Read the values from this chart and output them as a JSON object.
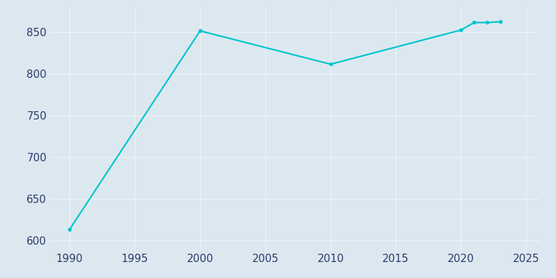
{
  "x": [
    1990,
    2000,
    2010,
    2020,
    2021,
    2022,
    2023
  ],
  "y": [
    613,
    851,
    811,
    852,
    861,
    861,
    862
  ],
  "line_color": "#00c5cd",
  "marker": "o",
  "marker_size": 3.5,
  "bg_color": "#dce8f0",
  "plot_bg_color": "#dce8f0",
  "grid_color": "#eef3f8",
  "xlabel": "",
  "ylabel": "",
  "xlim": [
    1988.5,
    2026
  ],
  "ylim": [
    588,
    878
  ],
  "xticks": [
    1990,
    1995,
    2000,
    2005,
    2010,
    2015,
    2020,
    2025
  ],
  "yticks": [
    600,
    650,
    700,
    750,
    800,
    850
  ],
  "tick_label_color": "#2d3a6b",
  "tick_fontsize": 11,
  "line_width": 1.6
}
